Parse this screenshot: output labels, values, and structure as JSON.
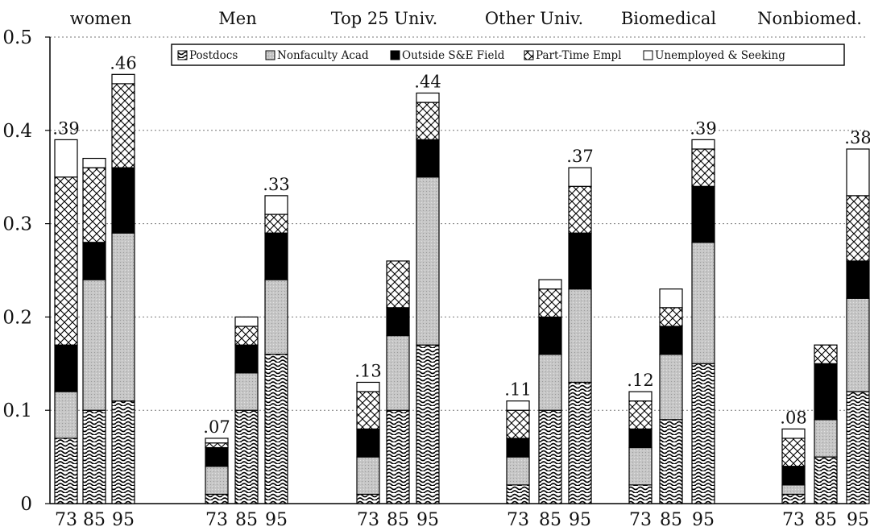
{
  "chart_data": {
    "type": "bar",
    "stacked": true,
    "title": "",
    "xlabel": "",
    "ylabel": "",
    "ylim": [
      0,
      0.5
    ],
    "yticks": [
      "0",
      "0.1",
      "0.2",
      "0.3",
      "0.4",
      "0.5"
    ],
    "grid": "horizontal-dotted",
    "legend_position": "top",
    "groups": [
      "women",
      "Men",
      "Top 25 Univ.",
      "Other Univ.",
      "Biomedical",
      "Nonbiomed."
    ],
    "years": [
      "73",
      "85",
      "95"
    ],
    "series": [
      {
        "name": "Postdocs",
        "pattern": "wavy",
        "color": "#ffffff",
        "values": [
          [
            0.07,
            0.1,
            0.11
          ],
          [
            0.01,
            0.1,
            0.16
          ],
          [
            0.01,
            0.1,
            0.17
          ],
          [
            0.02,
            0.1,
            0.13
          ],
          [
            0.02,
            0.09,
            0.15
          ],
          [
            0.01,
            0.05,
            0.12
          ]
        ]
      },
      {
        "name": "Nonfaculty Acad",
        "pattern": "gray",
        "color": "#c8c8c8",
        "values": [
          [
            0.05,
            0.14,
            0.18
          ],
          [
            0.03,
            0.04,
            0.08
          ],
          [
            0.04,
            0.08,
            0.18
          ],
          [
            0.03,
            0.06,
            0.1
          ],
          [
            0.04,
            0.07,
            0.13
          ],
          [
            0.01,
            0.04,
            0.1
          ]
        ]
      },
      {
        "name": "Outside S&E Field",
        "pattern": "black",
        "color": "#000000",
        "values": [
          [
            0.05,
            0.04,
            0.07
          ],
          [
            0.02,
            0.03,
            0.05
          ],
          [
            0.03,
            0.03,
            0.04
          ],
          [
            0.02,
            0.04,
            0.06
          ],
          [
            0.02,
            0.03,
            0.06
          ],
          [
            0.02,
            0.06,
            0.04
          ]
        ]
      },
      {
        "name": "Part-Time Empl",
        "pattern": "crosshatch",
        "color": "#ffffff",
        "values": [
          [
            0.18,
            0.08,
            0.09
          ],
          [
            0.005,
            0.02,
            0.02
          ],
          [
            0.04,
            0.05,
            0.04
          ],
          [
            0.03,
            0.03,
            0.05
          ],
          [
            0.03,
            0.02,
            0.04
          ],
          [
            0.03,
            0.02,
            0.07
          ]
        ]
      },
      {
        "name": "Unemployed & Seeking",
        "pattern": "empty",
        "color": "#ffffff",
        "values": [
          [
            0.04,
            0.01,
            0.01
          ],
          [
            0.005,
            0.01,
            0.02
          ],
          [
            0.01,
            0.0,
            0.01
          ],
          [
            0.01,
            0.01,
            0.02
          ],
          [
            0.01,
            0.02,
            0.01
          ],
          [
            0.01,
            0.0,
            0.05
          ]
        ]
      }
    ],
    "annotations": [
      {
        "group": 0,
        "year": 0,
        "label": ".39"
      },
      {
        "group": 0,
        "year": 2,
        "label": ".46"
      },
      {
        "group": 1,
        "year": 0,
        "label": ".07"
      },
      {
        "group": 1,
        "year": 2,
        "label": ".33"
      },
      {
        "group": 2,
        "year": 0,
        "label": ".13"
      },
      {
        "group": 2,
        "year": 2,
        "label": ".44"
      },
      {
        "group": 3,
        "year": 0,
        "label": ".11"
      },
      {
        "group": 3,
        "year": 2,
        "label": ".37"
      },
      {
        "group": 4,
        "year": 0,
        "label": ".12"
      },
      {
        "group": 4,
        "year": 2,
        "label": ".39"
      },
      {
        "group": 5,
        "year": 0,
        "label": ".08"
      },
      {
        "group": 5,
        "year": 2,
        "label": ".38"
      }
    ]
  }
}
